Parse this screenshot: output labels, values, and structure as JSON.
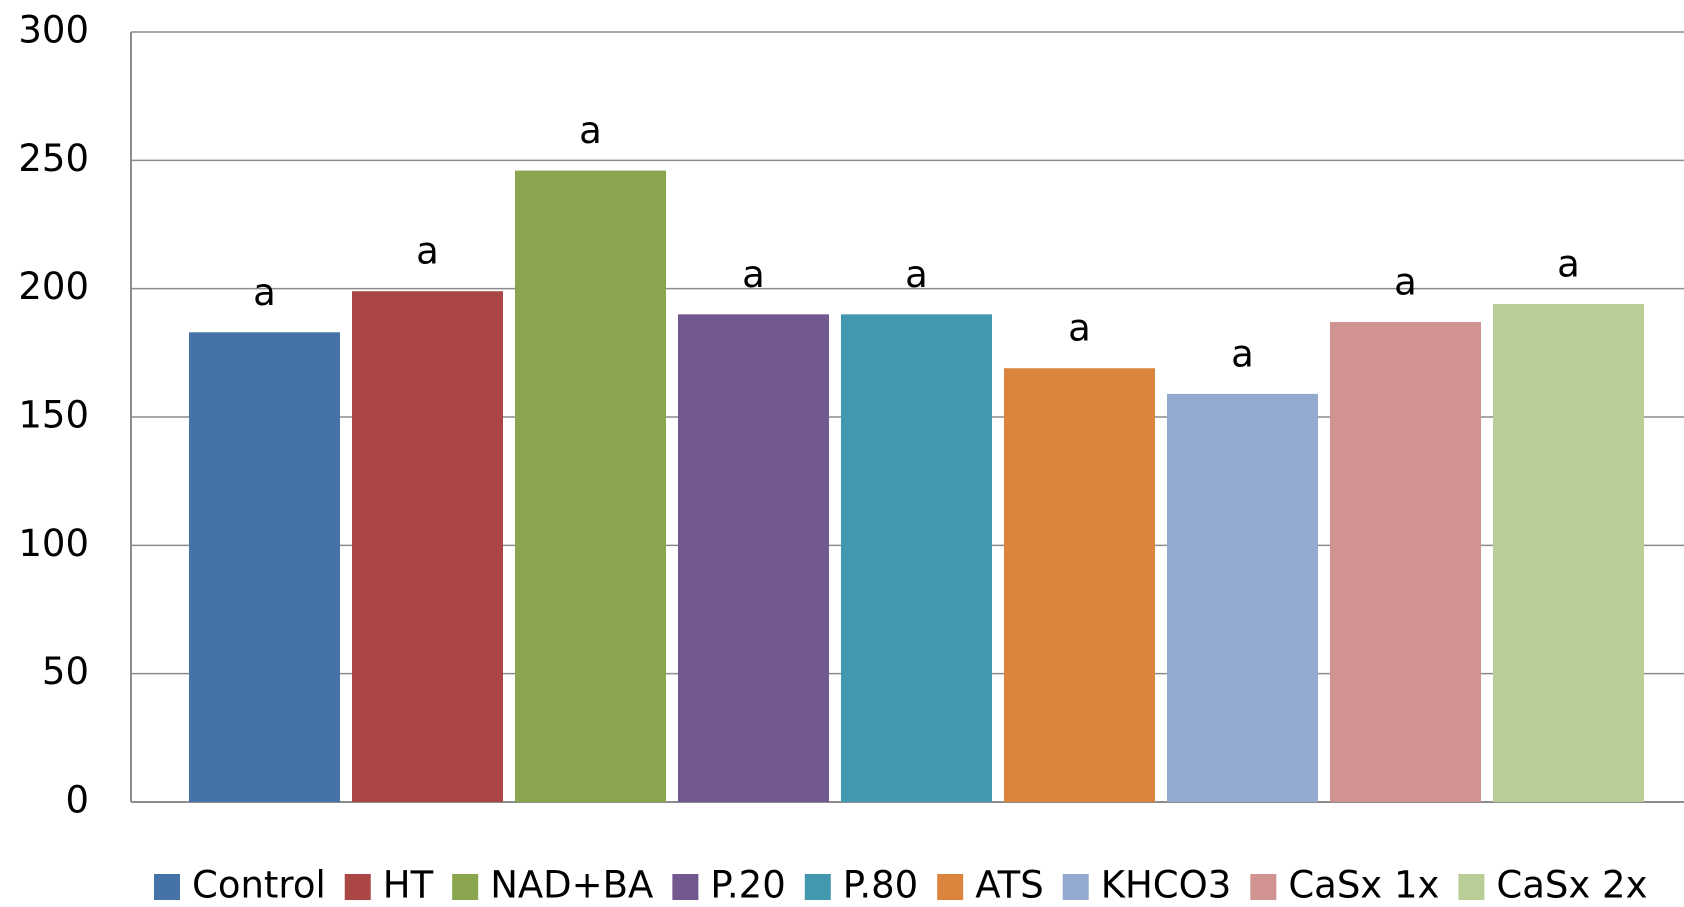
{
  "chart_data": {
    "type": "bar",
    "categories": [
      null
    ],
    "series": [
      {
        "name": "Control",
        "color": "#4573a7",
        "values": [
          183
        ],
        "annotation": "a"
      },
      {
        "name": "HT",
        "color": "#aa4644",
        "values": [
          199
        ],
        "annotation": "a"
      },
      {
        "name": "NAD+BA",
        "color": "#89a54e",
        "values": [
          246
        ],
        "annotation": "a"
      },
      {
        "name": "P.20",
        "color": "#71588f",
        "values": [
          190
        ],
        "annotation": "a"
      },
      {
        "name": "P.80",
        "color": "#4298af",
        "values": [
          190
        ],
        "annotation": "a"
      },
      {
        "name": "ATS",
        "color": "#db843d",
        "values": [
          169
        ],
        "annotation": "a"
      },
      {
        "name": "KHCO3",
        "color": "#93a9cf",
        "values": [
          159
        ],
        "annotation": "a"
      },
      {
        "name": "CaSx 1x",
        "color": "#d19392",
        "values": [
          187
        ],
        "annotation": "a"
      },
      {
        "name": "CaSx 2x",
        "color": "#b9cd96",
        "values": [
          194
        ],
        "annotation": "a"
      }
    ],
    "ylim": [
      0,
      300
    ],
    "yticks": [
      0,
      50,
      100,
      150,
      200,
      250,
      300
    ],
    "grid": true,
    "legend": "bottom"
  }
}
